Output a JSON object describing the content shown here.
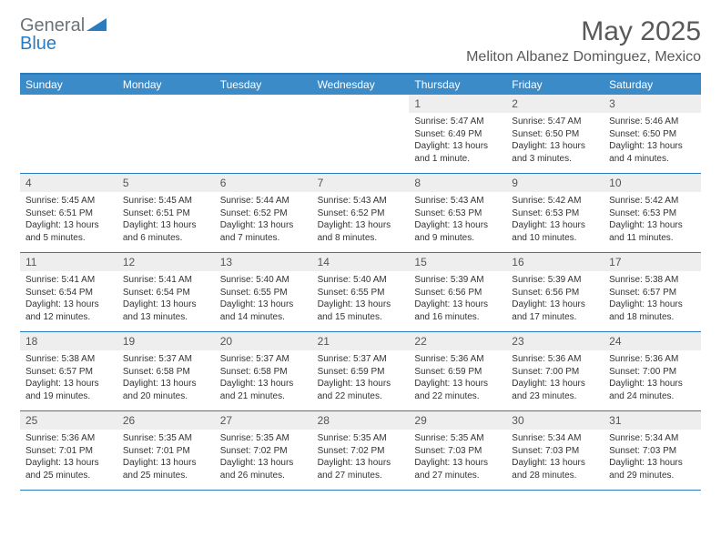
{
  "logo": {
    "general": "General",
    "blue": "Blue"
  },
  "title": "May 2025",
  "location": "Meliton Albanez Dominguez, Mexico",
  "colors": {
    "header_bg": "#3b8bc9",
    "border": "#2b7bbf",
    "daynum_bg": "#eeeeee",
    "text": "#333333",
    "title_text": "#595959"
  },
  "weekdays": [
    "Sunday",
    "Monday",
    "Tuesday",
    "Wednesday",
    "Thursday",
    "Friday",
    "Saturday"
  ],
  "weeks": [
    [
      {
        "n": "",
        "sr": "",
        "ss": "",
        "dl": ""
      },
      {
        "n": "",
        "sr": "",
        "ss": "",
        "dl": ""
      },
      {
        "n": "",
        "sr": "",
        "ss": "",
        "dl": ""
      },
      {
        "n": "",
        "sr": "",
        "ss": "",
        "dl": ""
      },
      {
        "n": "1",
        "sr": "Sunrise: 5:47 AM",
        "ss": "Sunset: 6:49 PM",
        "dl": "Daylight: 13 hours and 1 minute."
      },
      {
        "n": "2",
        "sr": "Sunrise: 5:47 AM",
        "ss": "Sunset: 6:50 PM",
        "dl": "Daylight: 13 hours and 3 minutes."
      },
      {
        "n": "3",
        "sr": "Sunrise: 5:46 AM",
        "ss": "Sunset: 6:50 PM",
        "dl": "Daylight: 13 hours and 4 minutes."
      }
    ],
    [
      {
        "n": "4",
        "sr": "Sunrise: 5:45 AM",
        "ss": "Sunset: 6:51 PM",
        "dl": "Daylight: 13 hours and 5 minutes."
      },
      {
        "n": "5",
        "sr": "Sunrise: 5:45 AM",
        "ss": "Sunset: 6:51 PM",
        "dl": "Daylight: 13 hours and 6 minutes."
      },
      {
        "n": "6",
        "sr": "Sunrise: 5:44 AM",
        "ss": "Sunset: 6:52 PM",
        "dl": "Daylight: 13 hours and 7 minutes."
      },
      {
        "n": "7",
        "sr": "Sunrise: 5:43 AM",
        "ss": "Sunset: 6:52 PM",
        "dl": "Daylight: 13 hours and 8 minutes."
      },
      {
        "n": "8",
        "sr": "Sunrise: 5:43 AM",
        "ss": "Sunset: 6:53 PM",
        "dl": "Daylight: 13 hours and 9 minutes."
      },
      {
        "n": "9",
        "sr": "Sunrise: 5:42 AM",
        "ss": "Sunset: 6:53 PM",
        "dl": "Daylight: 13 hours and 10 minutes."
      },
      {
        "n": "10",
        "sr": "Sunrise: 5:42 AM",
        "ss": "Sunset: 6:53 PM",
        "dl": "Daylight: 13 hours and 11 minutes."
      }
    ],
    [
      {
        "n": "11",
        "sr": "Sunrise: 5:41 AM",
        "ss": "Sunset: 6:54 PM",
        "dl": "Daylight: 13 hours and 12 minutes."
      },
      {
        "n": "12",
        "sr": "Sunrise: 5:41 AM",
        "ss": "Sunset: 6:54 PM",
        "dl": "Daylight: 13 hours and 13 minutes."
      },
      {
        "n": "13",
        "sr": "Sunrise: 5:40 AM",
        "ss": "Sunset: 6:55 PM",
        "dl": "Daylight: 13 hours and 14 minutes."
      },
      {
        "n": "14",
        "sr": "Sunrise: 5:40 AM",
        "ss": "Sunset: 6:55 PM",
        "dl": "Daylight: 13 hours and 15 minutes."
      },
      {
        "n": "15",
        "sr": "Sunrise: 5:39 AM",
        "ss": "Sunset: 6:56 PM",
        "dl": "Daylight: 13 hours and 16 minutes."
      },
      {
        "n": "16",
        "sr": "Sunrise: 5:39 AM",
        "ss": "Sunset: 6:56 PM",
        "dl": "Daylight: 13 hours and 17 minutes."
      },
      {
        "n": "17",
        "sr": "Sunrise: 5:38 AM",
        "ss": "Sunset: 6:57 PM",
        "dl": "Daylight: 13 hours and 18 minutes."
      }
    ],
    [
      {
        "n": "18",
        "sr": "Sunrise: 5:38 AM",
        "ss": "Sunset: 6:57 PM",
        "dl": "Daylight: 13 hours and 19 minutes."
      },
      {
        "n": "19",
        "sr": "Sunrise: 5:37 AM",
        "ss": "Sunset: 6:58 PM",
        "dl": "Daylight: 13 hours and 20 minutes."
      },
      {
        "n": "20",
        "sr": "Sunrise: 5:37 AM",
        "ss": "Sunset: 6:58 PM",
        "dl": "Daylight: 13 hours and 21 minutes."
      },
      {
        "n": "21",
        "sr": "Sunrise: 5:37 AM",
        "ss": "Sunset: 6:59 PM",
        "dl": "Daylight: 13 hours and 22 minutes."
      },
      {
        "n": "22",
        "sr": "Sunrise: 5:36 AM",
        "ss": "Sunset: 6:59 PM",
        "dl": "Daylight: 13 hours and 22 minutes."
      },
      {
        "n": "23",
        "sr": "Sunrise: 5:36 AM",
        "ss": "Sunset: 7:00 PM",
        "dl": "Daylight: 13 hours and 23 minutes."
      },
      {
        "n": "24",
        "sr": "Sunrise: 5:36 AM",
        "ss": "Sunset: 7:00 PM",
        "dl": "Daylight: 13 hours and 24 minutes."
      }
    ],
    [
      {
        "n": "25",
        "sr": "Sunrise: 5:36 AM",
        "ss": "Sunset: 7:01 PM",
        "dl": "Daylight: 13 hours and 25 minutes."
      },
      {
        "n": "26",
        "sr": "Sunrise: 5:35 AM",
        "ss": "Sunset: 7:01 PM",
        "dl": "Daylight: 13 hours and 25 minutes."
      },
      {
        "n": "27",
        "sr": "Sunrise: 5:35 AM",
        "ss": "Sunset: 7:02 PM",
        "dl": "Daylight: 13 hours and 26 minutes."
      },
      {
        "n": "28",
        "sr": "Sunrise: 5:35 AM",
        "ss": "Sunset: 7:02 PM",
        "dl": "Daylight: 13 hours and 27 minutes."
      },
      {
        "n": "29",
        "sr": "Sunrise: 5:35 AM",
        "ss": "Sunset: 7:03 PM",
        "dl": "Daylight: 13 hours and 27 minutes."
      },
      {
        "n": "30",
        "sr": "Sunrise: 5:34 AM",
        "ss": "Sunset: 7:03 PM",
        "dl": "Daylight: 13 hours and 28 minutes."
      },
      {
        "n": "31",
        "sr": "Sunrise: 5:34 AM",
        "ss": "Sunset: 7:03 PM",
        "dl": "Daylight: 13 hours and 29 minutes."
      }
    ]
  ]
}
